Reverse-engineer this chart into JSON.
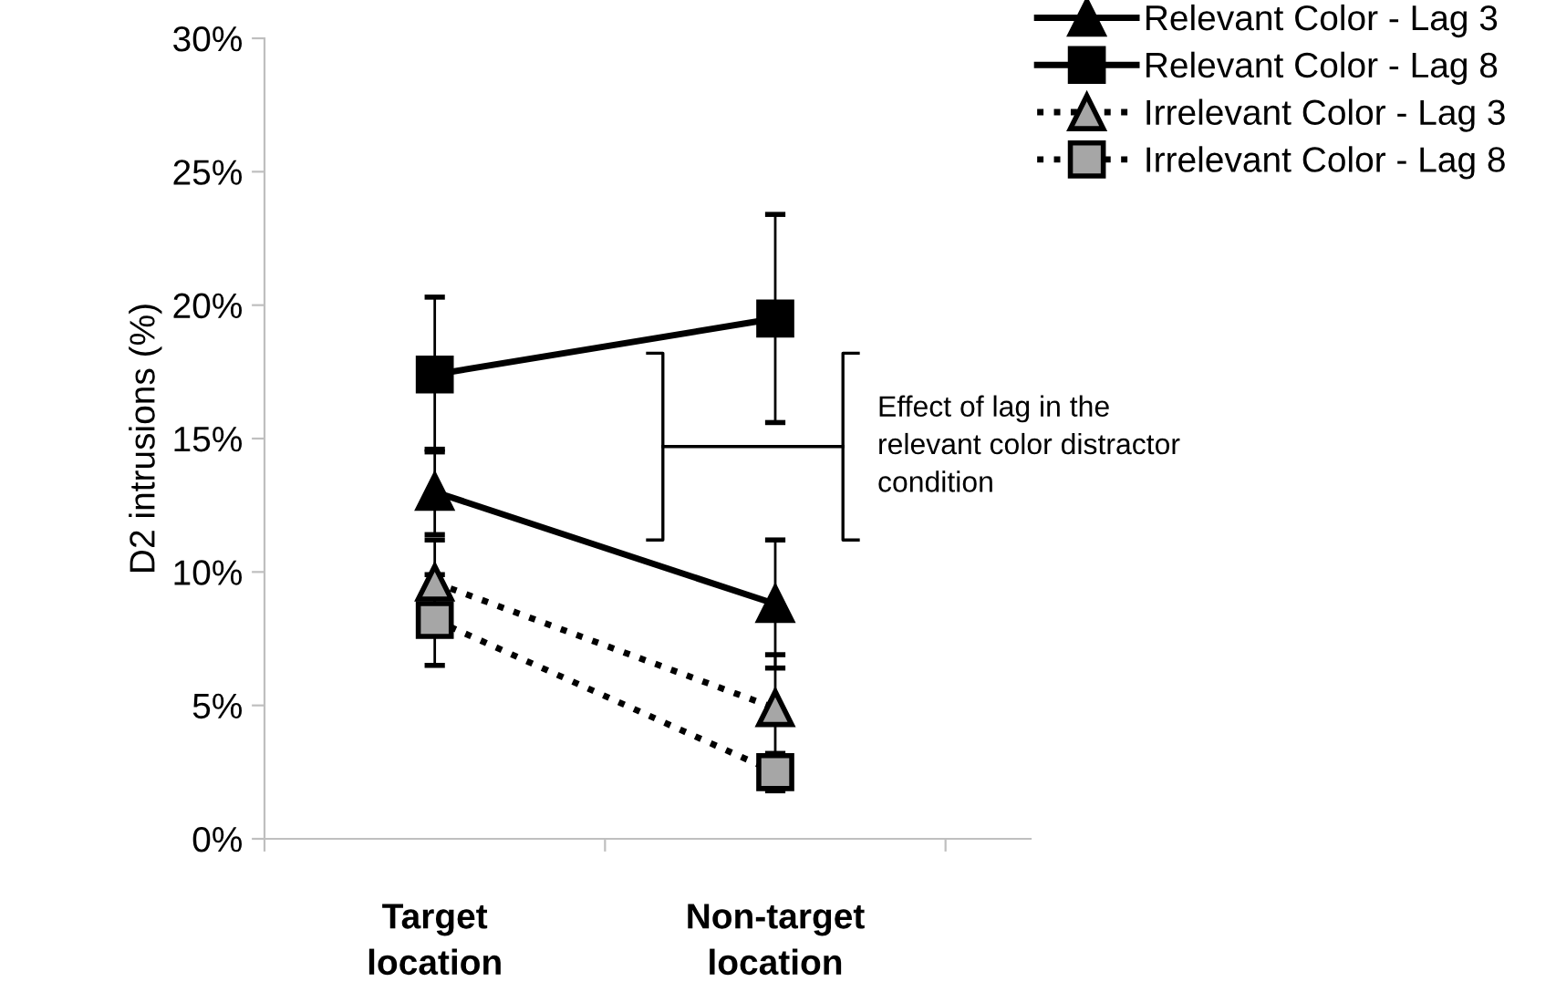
{
  "chart_data": {
    "type": "line",
    "ylabel": "D2 intrusions (%)",
    "categories": [
      "Target\nlocation",
      "Non-target\nlocation"
    ],
    "series": [
      {
        "name": "Relevant Color - Lag 3",
        "color": "#000000",
        "marker": "triangle",
        "line_style": "solid",
        "values": [
          13.0,
          8.8
        ],
        "errors": [
          1.6,
          2.4
        ]
      },
      {
        "name": "Relevant Color - Lag 8",
        "color": "#000000",
        "marker": "square",
        "line_style": "solid",
        "values": [
          17.4,
          19.5
        ],
        "errors": [
          2.9,
          3.9
        ]
      },
      {
        "name": "Irrelevant Color - Lag 3",
        "color": "#a6a6a6",
        "marker": "triangle",
        "line_style": "dotted",
        "values": [
          9.6,
          4.9
        ],
        "errors": [
          1.6,
          2.0
        ]
      },
      {
        "name": "Irrelevant Color - Lag 8",
        "color": "#a6a6a6",
        "marker": "square",
        "line_style": "dotted",
        "values": [
          8.2,
          2.5
        ],
        "errors": [
          1.7,
          0.7
        ]
      }
    ],
    "ylim": [
      0,
      30
    ],
    "yticks": [
      {
        "value": 0,
        "label": "0%"
      },
      {
        "value": 5,
        "label": "5%"
      },
      {
        "value": 10,
        "label": "10%"
      },
      {
        "value": 15,
        "label": "15%"
      },
      {
        "value": 20,
        "label": "20%"
      },
      {
        "value": 25,
        "label": "25%"
      },
      {
        "value": 30,
        "label": "30%"
      }
    ],
    "grid": false,
    "legend": "top right",
    "annotations": [
      "Effect of lag in the\nrelevant color distractor\ncondition"
    ]
  }
}
